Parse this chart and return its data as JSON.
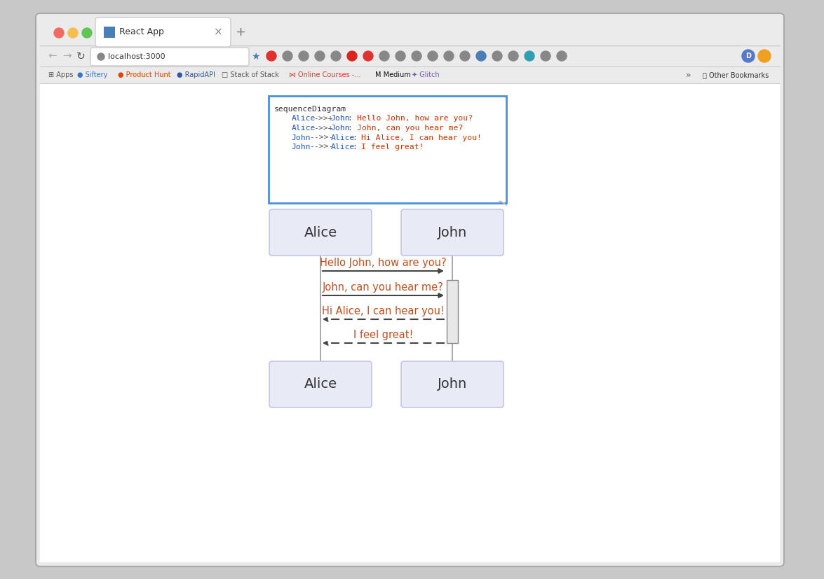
{
  "bg_outer": "#c8c8c8",
  "bg_browser": "#ebebeb",
  "bg_content": "#ffffff",
  "bg_textarea": "#ffffff",
  "bg_box": "#e8eaf6",
  "box_border": "#c5c7e0",
  "textarea_border": "#4a90d9",
  "lifeline_color": "#999999",
  "arrow_color": "#444444",
  "text_color_label": "#333333",
  "text_color_msg": "#c05020",
  "tab_text": "React App",
  "url_text": "localhost:3000",
  "traffic_red": "#ed6b60",
  "traffic_yellow": "#f5be4f",
  "traffic_green": "#61c554",
  "actors": [
    "Alice",
    "John"
  ],
  "code_segments": [
    [
      [
        "#333333",
        "sequenceDiagram"
      ]
    ],
    [
      [
        "#555555",
        "    "
      ],
      [
        "#2255bb",
        "Alice"
      ],
      [
        "#555555",
        "->>+"
      ],
      [
        "#2255bb",
        "John"
      ],
      [
        "#555555",
        ": "
      ],
      [
        "#cc3300",
        "Hello John, how are you?"
      ]
    ],
    [
      [
        "#555555",
        "    "
      ],
      [
        "#2255bb",
        "Alice"
      ],
      [
        "#555555",
        "->>+"
      ],
      [
        "#2255bb",
        "John"
      ],
      [
        "#555555",
        ": "
      ],
      [
        "#cc3300",
        "John, can you hear me?"
      ]
    ],
    [
      [
        "#555555",
        "    "
      ],
      [
        "#2255bb",
        "John"
      ],
      [
        "#555555",
        "-->>-"
      ],
      [
        "#2255bb",
        "Alice"
      ],
      [
        "#555555",
        ": "
      ],
      [
        "#cc3300",
        "Hi Alice, I can hear you!"
      ]
    ],
    [
      [
        "#555555",
        "    "
      ],
      [
        "#2255bb",
        "John"
      ],
      [
        "#555555",
        "-->>-"
      ],
      [
        "#2255bb",
        "Alice"
      ],
      [
        "#555555",
        ": "
      ],
      [
        "#cc3300",
        "I feel great!"
      ]
    ]
  ]
}
